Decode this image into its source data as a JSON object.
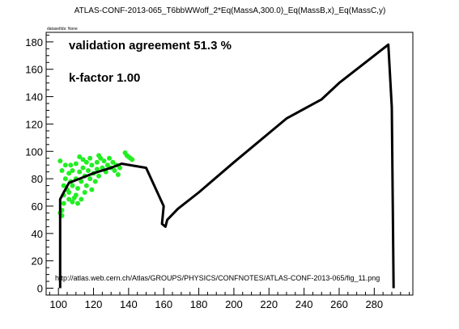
{
  "chart_data": {
    "type": "scatter",
    "title": "ATLAS-CONF-2013-065_T6bbWWoff_2*Eq(MassA,300.0)_Eq(MassB,x)_Eq(MassC,y)",
    "dataset_label": "datasetIds: None",
    "annotations": {
      "agreement": "validation agreement 51.3 %",
      "kfactor": "k-factor 1.00",
      "url": "http://atlas.web.cern.ch/Atlas/GROUPS/PHYSICS/CONFNOTES/ATLAS-CONF-2013-065/fig_11.png"
    },
    "xlim": [
      93,
      302
    ],
    "ylim": [
      -5,
      187
    ],
    "x_ticks": [
      100,
      120,
      140,
      160,
      180,
      200,
      220,
      240,
      260,
      280
    ],
    "y_ticks": [
      0,
      20,
      40,
      60,
      80,
      100,
      120,
      140,
      160,
      180
    ],
    "grid": false,
    "colors": {
      "points": "#22ee22",
      "contour": "#000000"
    },
    "points": [
      [
        101,
        93
      ],
      [
        101,
        55
      ],
      [
        102,
        57
      ],
      [
        102,
        53
      ],
      [
        102,
        86
      ],
      [
        103,
        75
      ],
      [
        103,
        68
      ],
      [
        103,
        62
      ],
      [
        104,
        90
      ],
      [
        104,
        80
      ],
      [
        105,
        72
      ],
      [
        106,
        70
      ],
      [
        106,
        65
      ],
      [
        106,
        84
      ],
      [
        107,
        78
      ],
      [
        107,
        90
      ],
      [
        108,
        63
      ],
      [
        108,
        75
      ],
      [
        108,
        86
      ],
      [
        109,
        66
      ],
      [
        110,
        80
      ],
      [
        110,
        68
      ],
      [
        110,
        91
      ],
      [
        111,
        62
      ],
      [
        111,
        73
      ],
      [
        112,
        85
      ],
      [
        112,
        96
      ],
      [
        113,
        65
      ],
      [
        113,
        78
      ],
      [
        114,
        88
      ],
      [
        114,
        94
      ],
      [
        115,
        70
      ],
      [
        115,
        82
      ],
      [
        116,
        75
      ],
      [
        116,
        92
      ],
      [
        117,
        86
      ],
      [
        118,
        80
      ],
      [
        118,
        95
      ],
      [
        119,
        72
      ],
      [
        119,
        90
      ],
      [
        120,
        84
      ],
      [
        121,
        78
      ],
      [
        122,
        92
      ],
      [
        122,
        87
      ],
      [
        123,
        97
      ],
      [
        123,
        82
      ],
      [
        124,
        95
      ],
      [
        125,
        88
      ],
      [
        126,
        93
      ],
      [
        127,
        85
      ],
      [
        128,
        90
      ],
      [
        129,
        95
      ],
      [
        130,
        88
      ],
      [
        131,
        92
      ],
      [
        132,
        86
      ],
      [
        133,
        90
      ],
      [
        134,
        83
      ],
      [
        135,
        88
      ],
      [
        138,
        99
      ],
      [
        139,
        97
      ],
      [
        140,
        96
      ],
      [
        141,
        95
      ],
      [
        142,
        94
      ]
    ],
    "contour": [
      [
        101,
        0
      ],
      [
        101,
        52
      ],
      [
        101,
        65
      ],
      [
        103,
        70
      ],
      [
        106,
        77
      ],
      [
        112,
        80
      ],
      [
        120,
        84
      ],
      [
        130,
        88
      ],
      [
        136,
        91
      ],
      [
        150,
        88
      ],
      [
        160,
        60
      ],
      [
        159,
        47
      ],
      [
        161,
        45
      ],
      [
        162,
        50
      ],
      [
        168,
        58
      ],
      [
        180,
        70
      ],
      [
        200,
        92
      ],
      [
        230,
        124
      ],
      [
        250,
        138
      ],
      [
        260,
        150
      ],
      [
        288,
        178
      ],
      [
        290,
        132
      ],
      [
        291,
        0
      ]
    ]
  }
}
